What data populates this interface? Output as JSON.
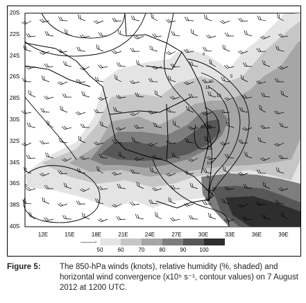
{
  "map": {
    "latitude_ticks": [
      "20S",
      "22S",
      "24S",
      "26S",
      "28S",
      "30S",
      "32S",
      "34S",
      "36S",
      "38S",
      "40S"
    ],
    "longitude_ticks": [
      "12E",
      "15E",
      "18E",
      "21E",
      "24E",
      "27E",
      "30E",
      "33E",
      "36E",
      "39E"
    ],
    "legend": {
      "values": [
        "50",
        "60",
        "70",
        "80",
        "90",
        "100"
      ],
      "colors": [
        "#e4e4e4",
        "#c6c6c6",
        "#a6a6a6",
        "#7e7e7e",
        "#575757",
        "#2e2e2e"
      ],
      "wind_key_label": "———›"
    },
    "contour_labels": [
      "15",
      "20",
      "20",
      "10",
      "15",
      "10",
      "5",
      "5",
      "10",
      "0",
      "0",
      "0"
    ],
    "icons": [
      "wind-barb-icon"
    ]
  },
  "caption": {
    "figure_label": "Figure 5:",
    "text": "The 850-hPa winds (knots), relative humidity (%, shaded) and horizontal wind convergence (x10⁵ s⁻¹, contour values) on 7 August 2012 at 1200 UTC."
  }
}
